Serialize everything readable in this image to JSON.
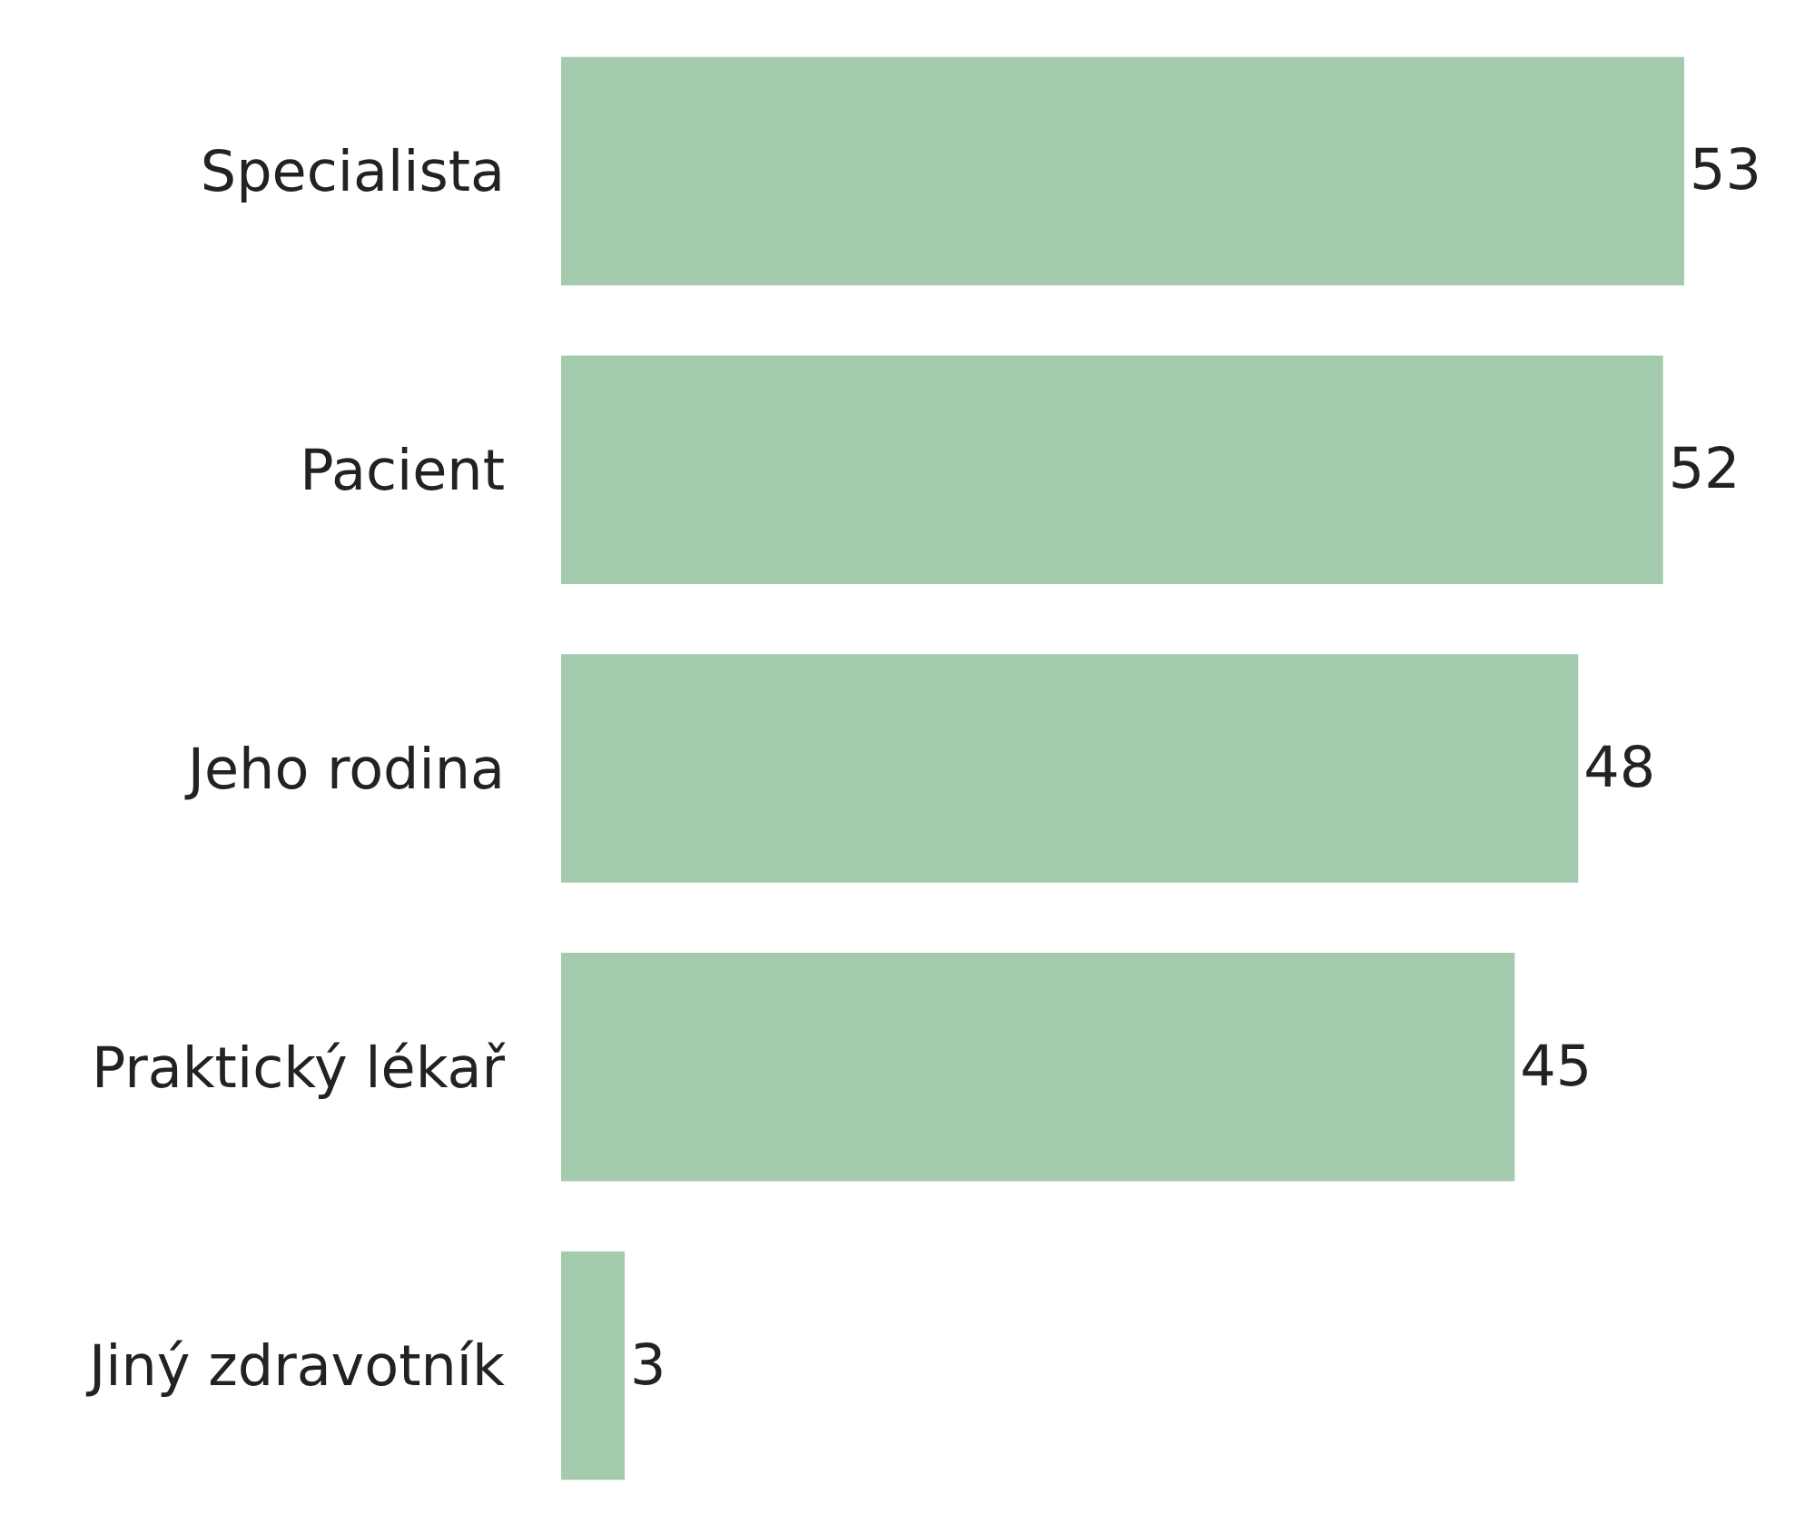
{
  "chart_data": {
    "type": "bar",
    "orientation": "horizontal",
    "categories": [
      "Specialista",
      "Pacient",
      "Jeho rodina",
      "Praktický lékař",
      "Jiný zdravotník"
    ],
    "values": [
      53,
      52,
      48,
      45,
      3
    ],
    "color": "#a5cbae",
    "data_labels": true,
    "grid": false,
    "legend": false,
    "tick_labels": "y"
  }
}
